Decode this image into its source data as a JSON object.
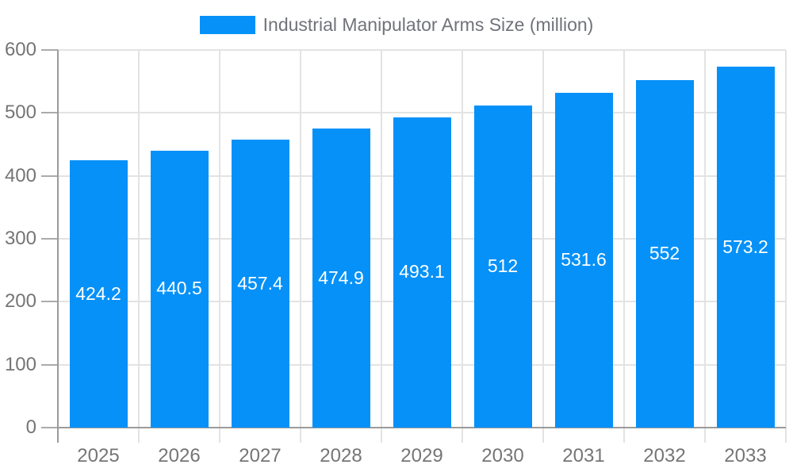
{
  "chart_data": {
    "type": "bar",
    "title": "Industrial Manipulator Arms Size (million)",
    "categories": [
      "2025",
      "2026",
      "2027",
      "2028",
      "2029",
      "2030",
      "2031",
      "2032",
      "2033"
    ],
    "values": [
      424.2,
      440.5,
      457.4,
      474.9,
      493.1,
      512,
      531.6,
      552,
      573.2
    ],
    "value_labels": [
      "424.2",
      "440.5",
      "457.4",
      "474.9",
      "493.1",
      "512",
      "531.6",
      "552",
      "573.2"
    ],
    "xlabel": "",
    "ylabel": "",
    "ylim": [
      0,
      600
    ],
    "yticks": [
      0,
      100,
      200,
      300,
      400,
      500,
      600
    ],
    "ytick_labels": [
      "0",
      "100",
      "200",
      "300",
      "400",
      "500",
      "600"
    ],
    "grid": true,
    "legend_position": "top-center",
    "bar_label_position": "inside-center"
  },
  "colors": {
    "bar_fill": "#0591f8",
    "bar_value_label": "#ffffff",
    "gridline": "#e3e3e3",
    "axis_line": "#9b9b9b",
    "tick_mark": "#ababab",
    "tick_label": "#757575",
    "legend_text": "#707379",
    "background": "#ffffff"
  }
}
